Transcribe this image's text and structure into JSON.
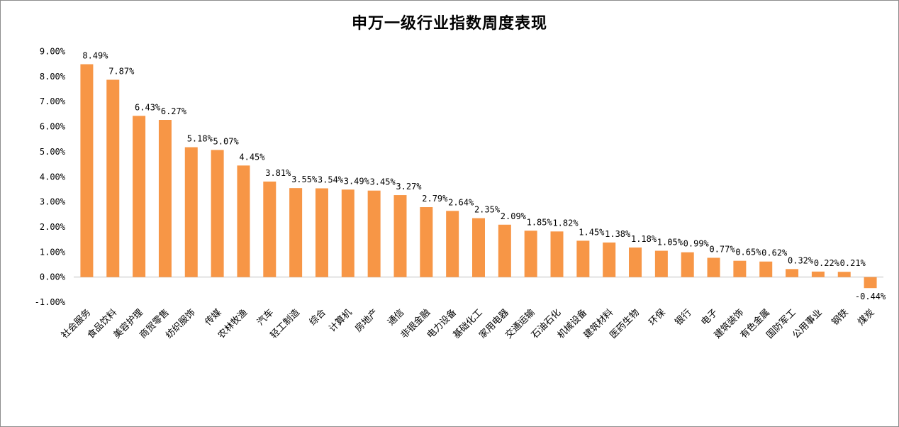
{
  "chart_data": {
    "type": "bar",
    "title": "申万一级行业指数周度表现",
    "xlabel": "",
    "ylabel": "",
    "ylim": [
      -1,
      9
    ],
    "yticks": [
      -1,
      0,
      1,
      2,
      3,
      4,
      5,
      6,
      7,
      8,
      9
    ],
    "ytick_labels": [
      "-1.00%",
      "0.00%",
      "1.00%",
      "2.00%",
      "3.00%",
      "4.00%",
      "5.00%",
      "6.00%",
      "7.00%",
      "8.00%",
      "9.00%"
    ],
    "grid": false,
    "legend": "none",
    "bar_color": "#F79646",
    "categories": [
      "社会服务",
      "食品饮料",
      "美容护理",
      "商贸零售",
      "纺织服饰",
      "传媒",
      "农林牧渔",
      "汽车",
      "轻工制造",
      "综合",
      "计算机",
      "房地产",
      "通信",
      "非银金融",
      "电力设备",
      "基础化工",
      "家用电器",
      "交通运输",
      "石油石化",
      "机械设备",
      "建筑材料",
      "医药生物",
      "环保",
      "银行",
      "电子",
      "建筑装饰",
      "有色金属",
      "国防军工",
      "公用事业",
      "钢铁",
      "煤炭"
    ],
    "values": [
      8.49,
      7.87,
      6.43,
      6.27,
      5.18,
      5.07,
      4.45,
      3.81,
      3.55,
      3.54,
      3.49,
      3.45,
      3.27,
      2.79,
      2.64,
      2.35,
      2.09,
      1.85,
      1.82,
      1.45,
      1.38,
      1.18,
      1.05,
      0.99,
      0.77,
      0.65,
      0.62,
      0.32,
      0.22,
      0.21,
      -0.44
    ],
    "value_labels": [
      "8.49%",
      "7.87%",
      "6.43%",
      "6.27%",
      "5.18%",
      "5.07%",
      "4.45%",
      "3.81%",
      "3.55%",
      "3.54%",
      "3.49%",
      "3.45%",
      "3.27%",
      "2.79%",
      "2.64%",
      "2.35%",
      "2.09%",
      "1.85%",
      "1.82%",
      "1.45%",
      "1.38%",
      "1.18%",
      "1.05%",
      "0.99%",
      "0.77%",
      "0.65%",
      "0.62%",
      "0.32%",
      "0.22%",
      "0.21%",
      "-0.44%"
    ]
  }
}
